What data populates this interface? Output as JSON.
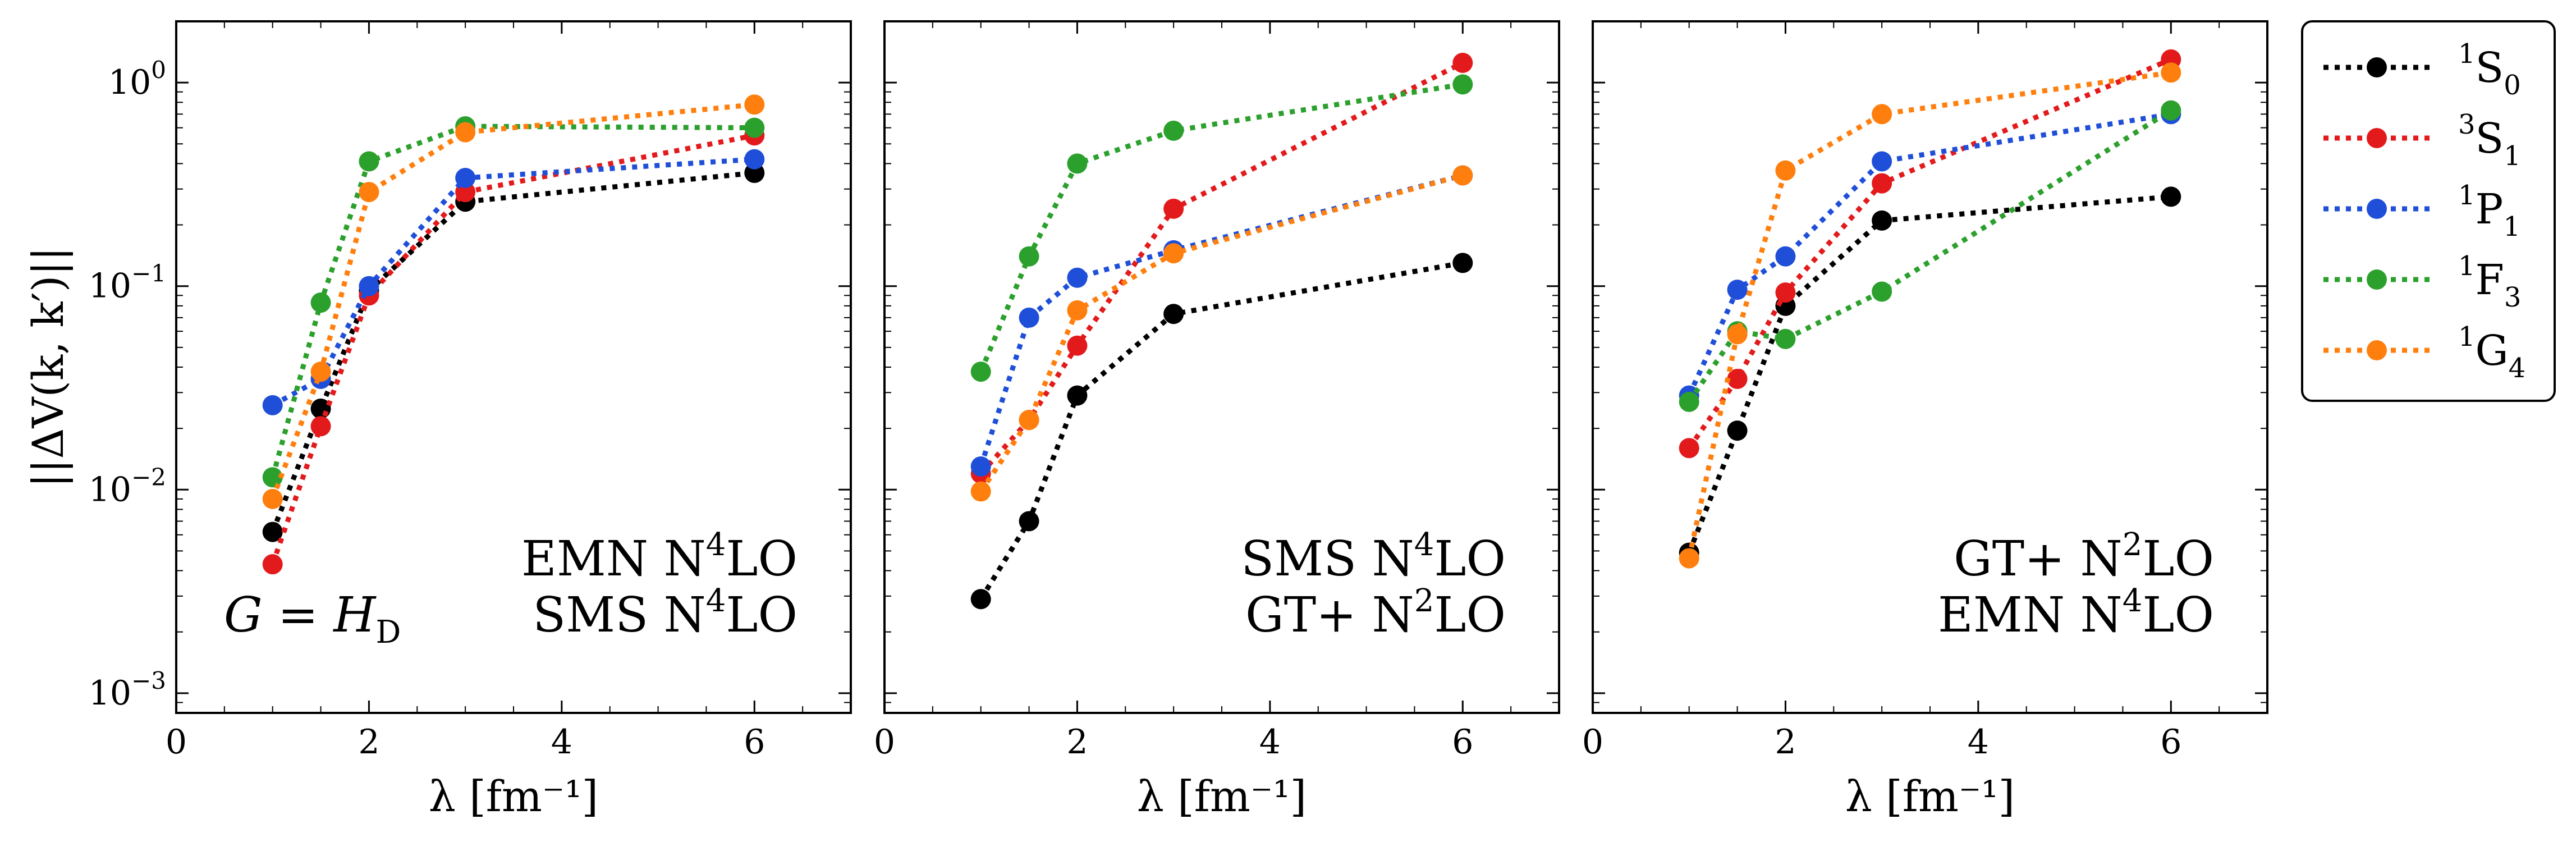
{
  "figure": {
    "ylabel": "||ΔV(k, k′)||",
    "xlabel": "λ [fm⁻¹]",
    "y_ticks": [
      {
        "value": 0.001,
        "base": "10",
        "exp": "−3"
      },
      {
        "value": 0.01,
        "base": "10",
        "exp": "−2"
      },
      {
        "value": 0.1,
        "base": "10",
        "exp": "−1"
      },
      {
        "value": 1,
        "base": "10",
        "exp": "0"
      }
    ],
    "x_ticks": [
      "0",
      "2",
      "4",
      "6"
    ]
  },
  "legend": {
    "placement": "outside-right",
    "items": [
      {
        "series": "1S0",
        "sup": "1",
        "main": "S",
        "sub": "0",
        "color": "#000000"
      },
      {
        "series": "3S1",
        "sup": "3",
        "main": "S",
        "sub": "1",
        "color": "#e31a1c"
      },
      {
        "series": "1P1",
        "sup": "1",
        "main": "P",
        "sub": "1",
        "color": "#1f4fd8"
      },
      {
        "series": "1F3",
        "sup": "1",
        "main": "F",
        "sub": "3",
        "color": "#2ca02c"
      },
      {
        "series": "1G4",
        "sup": "1",
        "main": "G",
        "sub": "4",
        "color": "#ff7f0e"
      }
    ]
  },
  "chart_data": [
    {
      "type": "line",
      "xlim": [
        0,
        7
      ],
      "ylim": [
        0.0008,
        2
      ],
      "yscale": "log",
      "x": [
        1.0,
        1.5,
        2.0,
        3.0,
        6.0
      ],
      "annotation": {
        "lines": [
          {
            "main": "EMN N",
            "sup": "4",
            "rest": "LO"
          },
          {
            "main": "SMS N",
            "sup": "4",
            "rest": "LO"
          }
        ]
      },
      "corner_label": {
        "text": "G = H",
        "sub": "D"
      },
      "series": [
        {
          "name": "1S0",
          "values": [
            0.0062,
            0.025,
            0.095,
            0.26,
            0.36
          ]
        },
        {
          "name": "3S1",
          "values": [
            0.0043,
            0.0205,
            0.09,
            0.29,
            0.55
          ]
        },
        {
          "name": "1P1",
          "values": [
            0.026,
            0.035,
            0.1,
            0.34,
            0.42
          ]
        },
        {
          "name": "1F3",
          "values": [
            0.0115,
            0.083,
            0.41,
            0.61,
            0.6
          ]
        },
        {
          "name": "1G4",
          "values": [
            0.009,
            0.038,
            0.29,
            0.57,
            0.78
          ]
        }
      ]
    },
    {
      "type": "line",
      "xlim": [
        0,
        7
      ],
      "ylim": [
        0.0008,
        2
      ],
      "yscale": "log",
      "x": [
        1.0,
        1.5,
        2.0,
        3.0,
        6.0
      ],
      "annotation": {
        "lines": [
          {
            "main": "SMS N",
            "sup": "4",
            "rest": "LO"
          },
          {
            "main": "GT+ N",
            "sup": "2",
            "rest": "LO"
          }
        ]
      },
      "series": [
        {
          "name": "1S0",
          "values": [
            0.0029,
            0.007,
            0.029,
            0.073,
            0.13
          ]
        },
        {
          "name": "3S1",
          "values": [
            0.012,
            0.022,
            0.051,
            0.24,
            1.25
          ]
        },
        {
          "name": "1P1",
          "values": [
            0.013,
            0.07,
            0.11,
            0.15,
            0.35
          ]
        },
        {
          "name": "1F3",
          "values": [
            0.038,
            0.14,
            0.4,
            0.58,
            0.98
          ]
        },
        {
          "name": "1G4",
          "values": [
            0.0098,
            0.022,
            0.076,
            0.145,
            0.35
          ]
        }
      ]
    },
    {
      "type": "line",
      "xlim": [
        0,
        7
      ],
      "ylim": [
        0.0008,
        2
      ],
      "yscale": "log",
      "x": [
        1.0,
        1.5,
        2.0,
        3.0,
        6.0
      ],
      "annotation": {
        "lines": [
          {
            "main": "GT+ N",
            "sup": "2",
            "rest": "LO"
          },
          {
            "main": "EMN N",
            "sup": "4",
            "rest": "LO"
          }
        ]
      },
      "series": [
        {
          "name": "1S0",
          "values": [
            0.0049,
            0.0195,
            0.08,
            0.21,
            0.275
          ]
        },
        {
          "name": "3S1",
          "values": [
            0.016,
            0.035,
            0.093,
            0.32,
            1.3
          ]
        },
        {
          "name": "1P1",
          "values": [
            0.029,
            0.096,
            0.14,
            0.41,
            0.7
          ]
        },
        {
          "name": "1F3",
          "values": [
            0.027,
            0.06,
            0.055,
            0.094,
            0.73
          ]
        },
        {
          "name": "1G4",
          "values": [
            0.0046,
            0.058,
            0.37,
            0.7,
            1.12
          ]
        }
      ]
    }
  ]
}
